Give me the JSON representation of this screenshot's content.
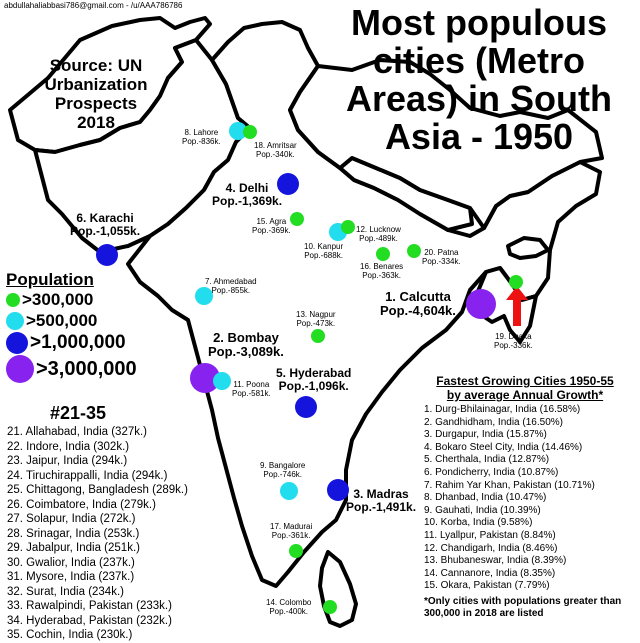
{
  "credit": "abdullahaliabbasi786@gmail.com - /u/AAA786786",
  "title_lines": [
    "Most populous",
    "cities (Metro",
    "Areas) in South",
    "Asia - 1950"
  ],
  "source_lines": [
    "Source: UN",
    "Urbanization",
    "Prospects 2018"
  ],
  "colors": {
    "tier_300k": "#22dd22",
    "tier_500k": "#22ddee",
    "tier_1m": "#1414dd",
    "tier_3m": "#8822ee",
    "arrow": "#ee1111",
    "outline": "#000000"
  },
  "legend": {
    "title": "Population",
    "items": [
      {
        "label": ">300,000",
        "tier": "tier_300k"
      },
      {
        "label": ">500,000",
        "tier": "tier_500k"
      },
      {
        "label": ">1,000,000",
        "tier": "tier_1m"
      },
      {
        "label": ">3,000,000",
        "tier": "tier_3m"
      }
    ]
  },
  "cities": [
    {
      "name": "1. Calcutta",
      "pop": "Pop.-4,604k.",
      "tier": "tier_3m"
    },
    {
      "name": "2. Bombay",
      "pop": "Pop.-3,089k.",
      "tier": "tier_3m"
    },
    {
      "name": "3. Madras",
      "pop": "Pop.-1,491k.",
      "tier": "tier_1m"
    },
    {
      "name": "4. Delhi",
      "pop": "Pop.-1,369k.",
      "tier": "tier_1m"
    },
    {
      "name": "5. Hyderabad",
      "pop": "Pop.-1,096k.",
      "tier": "tier_1m"
    },
    {
      "name": "6. Karachi",
      "pop": "Pop.-1,055k.",
      "tier": "tier_1m"
    },
    {
      "name": "7. Ahmedabad",
      "pop": "Pop.-855k.",
      "tier": "tier_500k"
    },
    {
      "name": "8. Lahore",
      "pop": "Pop.-836k.",
      "tier": "tier_500k"
    },
    {
      "name": "9. Bangalore",
      "pop": "Pop.-746k.",
      "tier": "tier_500k"
    },
    {
      "name": "10. Kanpur",
      "pop": "Pop.-688k.",
      "tier": "tier_500k"
    },
    {
      "name": "11. Poona",
      "pop": "Pop.-581k.",
      "tier": "tier_500k"
    },
    {
      "name": "12. Lucknow",
      "pop": "Pop.-489k.",
      "tier": "tier_300k"
    },
    {
      "name": "13. Nagpur",
      "pop": "Pop.-473k.",
      "tier": "tier_300k"
    },
    {
      "name": "14. Colombo",
      "pop": "Pop.-400k.",
      "tier": "tier_300k"
    },
    {
      "name": "15. Agra",
      "pop": "Pop.-369k.",
      "tier": "tier_300k"
    },
    {
      "name": "16. Benares",
      "pop": "Pop.-363k.",
      "tier": "tier_300k"
    },
    {
      "name": "17. Madurai",
      "pop": "Pop.-361k.",
      "tier": "tier_300k"
    },
    {
      "name": "18. Amritsar",
      "pop": "Pop.-340k.",
      "tier": "tier_300k"
    },
    {
      "name": "19. Dhaka",
      "pop": "Pop.-336k.",
      "tier": "tier_300k"
    },
    {
      "name": "20. Patna",
      "pop": "Pop.-334k.",
      "tier": "tier_300k"
    }
  ],
  "rank_21_35": {
    "title": "#21-35",
    "items": [
      "21. Allahabad, India (327k.)",
      "22. Indore, India (302k.)",
      "23. Jaipur, India (294k.)",
      "24. Tiruchirappalli, India (294k.)",
      "25. Chittagong, Bangladesh (289k.)",
      "26. Coimbatore, India (279k.)",
      "27. Solapur, India (272k.)",
      "28. Srinagar, India (253k.)",
      "29. Jabalpur, India (251k.)",
      "30. Gwalior, India (237k.)",
      "31. Mysore, India (237k.)",
      "32. Surat, India (234k.)",
      "33. Rawalpindi, Pakistan (233k.)",
      "34. Hyderabad, Pakistan (232k.)",
      "35. Cochin, India (230k.)"
    ]
  },
  "fastest": {
    "title_line1": "Fastest Growing Cities 1950-55",
    "title_line2": "by average Annual Growth*",
    "items": [
      "1. Durg-Bhilainagar, India (16.58%)",
      "2. Gandhidham, India (16.50%)",
      "3. Durgapur, India (15.87%)",
      "4. Bokaro Steel City, India (14.46%)",
      "5. Cherthala, India (12.87%)",
      "6. Pondicherry, India (10.87%)",
      "7. Rahim Yar Khan, Pakistan (10.71%)",
      "8. Dhanbad, India (10.47%)",
      "9. Gauhati, India (10.39%)",
      "10. Korba, India (9.58%)",
      "11. Lyallpur, Pakistan (8.84%)",
      "12. Chandigarh, India (8.46%)",
      "13. Bhubaneswar, India (8.39%)",
      "14. Cannanore, India (8.35%)",
      "15. Okara, Pakistan (7.79%)"
    ],
    "note": "*Only cities with populations greater than 300,000 in 2018 are listed"
  }
}
